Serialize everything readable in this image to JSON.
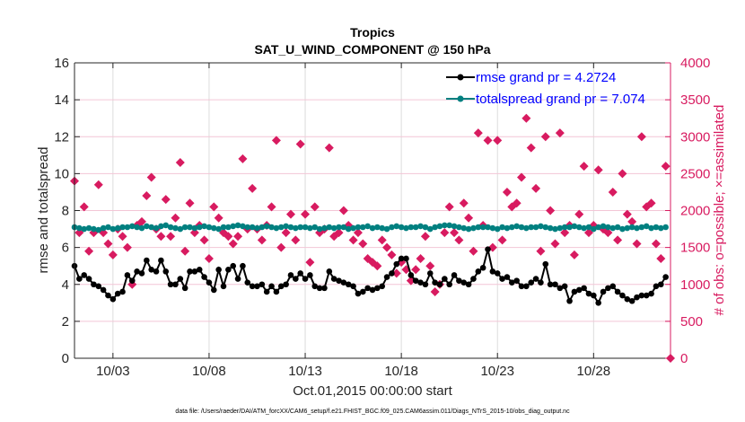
{
  "chart_data": {
    "type": "line",
    "title": "Tropics",
    "subtitle": "SAT_U_WIND_COMPONENT @ 150 hPa",
    "xlabel": "Oct.01,2015 00:00:00 start",
    "ylabel": "rmse and totalspread",
    "ylabel_right": "# of obs: o=possible; ×=assimilated",
    "footer": "data file: /Users/raeder/DAI/ATM_forcXX/CAM6_setup/f.e21.FHIST_BGC.f09_025.CAM6assim.011/Diags_NTrS_2015-10/obs_diag_output.nc",
    "x_unit": "days since Oct.01,2015 00:00:00",
    "xlim": [
      0,
      31
    ],
    "x_ticks": [
      2,
      7,
      12,
      17,
      22,
      27
    ],
    "x_tick_labels": [
      "10/03",
      "10/08",
      "10/13",
      "10/18",
      "10/23",
      "10/28"
    ],
    "ylim": [
      0,
      16
    ],
    "y_ticks": [
      0,
      2,
      4,
      6,
      8,
      10,
      12,
      14,
      16
    ],
    "ylim_right": [
      0,
      4000
    ],
    "y_ticks_right": [
      0,
      500,
      1000,
      1500,
      2000,
      2500,
      3000,
      3500,
      4000
    ],
    "grid": true,
    "legend_position": "top-right",
    "x_step_days": 0.25,
    "series": [
      {
        "name": "rmse grand pr = 4.2724",
        "color": "#000000",
        "axis": "left",
        "values": [
          5.0,
          4.3,
          4.5,
          4.3,
          4.0,
          3.9,
          3.7,
          3.4,
          3.2,
          3.5,
          3.6,
          4.5,
          4.2,
          4.7,
          4.6,
          5.3,
          4.8,
          4.7,
          5.3,
          4.7,
          4.0,
          4.0,
          4.3,
          3.8,
          4.7,
          4.7,
          4.8,
          4.4,
          4.1,
          3.7,
          4.8,
          3.9,
          4.8,
          5.0,
          4.3,
          5.0,
          4.1,
          3.9,
          3.9,
          4.0,
          3.6,
          3.9,
          3.6,
          3.9,
          4.0,
          4.5,
          4.3,
          4.6,
          4.3,
          4.5,
          3.9,
          3.8,
          3.8,
          4.7,
          4.3,
          4.2,
          4.1,
          4.0,
          3.9,
          3.5,
          3.6,
          3.8,
          3.7,
          3.8,
          3.9,
          4.4,
          4.6,
          5.1,
          5.4,
          5.4,
          4.5,
          4.2,
          4.1,
          4.0,
          4.6,
          4.1,
          4.0,
          4.3,
          4.0,
          4.5,
          4.2,
          4.1,
          4.0,
          4.3,
          4.7,
          4.9,
          5.9,
          4.7,
          4.6,
          4.3,
          4.4,
          4.1,
          4.2,
          3.9,
          3.9,
          4.1,
          4.3,
          4.1,
          5.1,
          4.0,
          4.0,
          3.8,
          3.9,
          3.1,
          3.6,
          3.7,
          3.8,
          3.5,
          3.4,
          3.0,
          3.6,
          3.8,
          3.9,
          3.6,
          3.4,
          3.2,
          3.1,
          3.3,
          3.4,
          3.4,
          3.5,
          3.9,
          4.0,
          4.4
        ]
      },
      {
        "name": "totalspread grand pr = 7.074",
        "color": "#008080",
        "axis": "left",
        "values": [
          7.1,
          7.05,
          7.0,
          7.05,
          7.0,
          6.95,
          7.05,
          7.1,
          7.0,
          7.05,
          7.1,
          7.1,
          7.15,
          7.1,
          7.05,
          7.15,
          7.1,
          7.05,
          7.15,
          7.2,
          7.1,
          7.05,
          7.0,
          7.1,
          7.1,
          7.05,
          7.1,
          7.15,
          7.1,
          7.05,
          7.0,
          7.1,
          7.1,
          7.15,
          7.2,
          7.15,
          7.1,
          7.1,
          7.05,
          7.1,
          7.15,
          7.1,
          7.05,
          7.1,
          7.15,
          7.1,
          7.05,
          7.1,
          7.1,
          7.05,
          7.1,
          7.0,
          7.05,
          7.1,
          7.05,
          7.1,
          7.1,
          7.0,
          7.05,
          7.1,
          7.1,
          7.15,
          7.05,
          7.1,
          7.05,
          7.0,
          7.1,
          7.15,
          7.1,
          7.05,
          7.1,
          7.1,
          7.15,
          7.1,
          7.0,
          7.1,
          7.15,
          7.2,
          7.2,
          7.15,
          7.1,
          7.05,
          7.0,
          7.05,
          7.1,
          7.1,
          7.1,
          7.05,
          7.0,
          7.1,
          7.05,
          7.1,
          7.15,
          7.1,
          7.05,
          7.1,
          7.1,
          7.15,
          7.1,
          7.05,
          7.0,
          7.05,
          7.1,
          7.1,
          7.15,
          7.1,
          7.05,
          7.1,
          7.0,
          7.1,
          7.15,
          7.1,
          7.05,
          7.1,
          7.0,
          7.05,
          7.1,
          7.05,
          7.1,
          7.15,
          7.05,
          7.1,
          7.05,
          7.1
        ]
      },
      {
        "name": "# of obs assimilated",
        "color": "#d81b60",
        "axis": "right",
        "marker": "diamond",
        "values": [
          2400,
          1700,
          2050,
          1450,
          1700,
          2350,
          1700,
          1550,
          1400,
          1750,
          1650,
          1500,
          1000,
          1800,
          1850,
          2200,
          2450,
          1750,
          1650,
          2150,
          1650,
          1900,
          2650,
          1450,
          2100,
          1700,
          1800,
          1600,
          1350,
          2050,
          1900,
          1700,
          1650,
          1550,
          1650,
          2700,
          1750,
          2300,
          1750,
          1600,
          1800,
          2050,
          2950,
          1500,
          1700,
          1950,
          1600,
          2900,
          1950,
          1300,
          2050,
          1700,
          1750,
          2850,
          1650,
          1700,
          2000,
          1800,
          1600,
          1700,
          1550,
          1350,
          1300,
          1250,
          1600,
          1500,
          1400,
          1150,
          1300,
          1200,
          1050,
          1200,
          1350,
          1650,
          1250,
          900,
          1000,
          1700,
          2050,
          1700,
          1600,
          2100,
          1900,
          1450,
          3050,
          1800,
          2950,
          1500,
          2950,
          1600,
          2250,
          2050,
          2100,
          2450,
          3250,
          2850,
          2300,
          1450,
          3000,
          2000,
          1550,
          3050,
          1700,
          1800,
          1400,
          1950,
          2600,
          1700,
          1800,
          2550,
          1750,
          1700,
          2250,
          1600,
          2500,
          1950,
          1850,
          1550,
          3000,
          2050,
          2100,
          1550,
          1350,
          2600
        ]
      }
    ],
    "extra_points_right": [
      {
        "x": 31,
        "y": 0
      }
    ]
  }
}
